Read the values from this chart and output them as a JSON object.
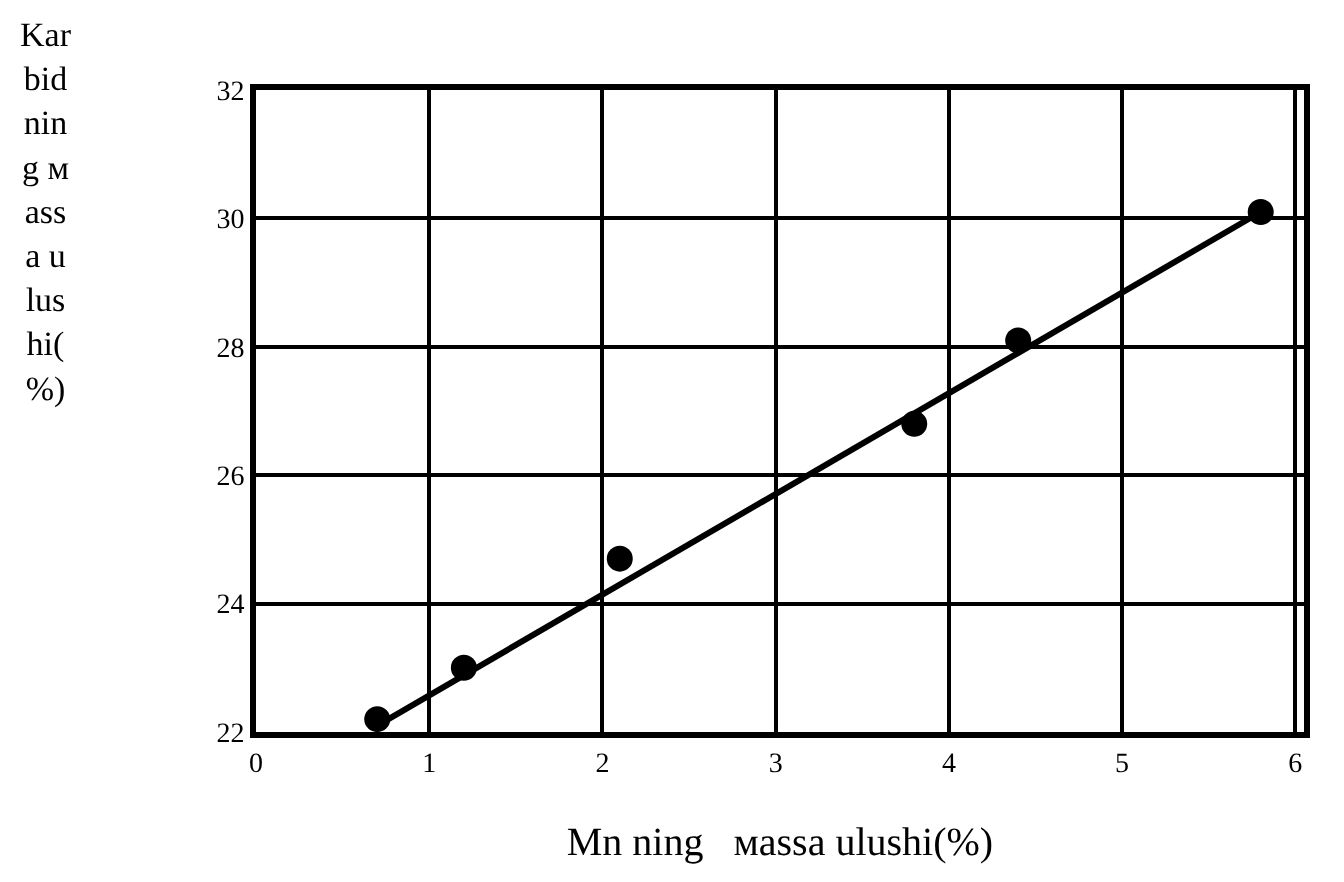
{
  "chart_data": {
    "type": "scatter",
    "xlabel": "Mn ning   мassa ulushi(%)",
    "ylabel": "Karbidning мassa ulushi(%)",
    "series": [
      {
        "color": "#000000",
        "marker": "circle",
        "x": [
          0.7,
          1.2,
          2.1,
          3.8,
          4.4,
          5.8
        ],
        "values": [
          22.2,
          23.0,
          24.7,
          26.8,
          28.1,
          30.1
        ]
      },
      {
        "type": "line",
        "color": "#000000",
        "marker": "none",
        "line_style": "solid",
        "x": [
          0.7,
          5.8
        ],
        "values": [
          22.1,
          30.1
        ]
      }
    ],
    "xlim": [
      0,
      6.05
    ],
    "xticks": [
      0,
      1,
      2,
      3,
      4,
      5,
      6
    ],
    "ylim": [
      22,
      32
    ],
    "yticks": [
      22,
      24,
      26,
      28,
      30,
      32
    ],
    "grid": true
  }
}
